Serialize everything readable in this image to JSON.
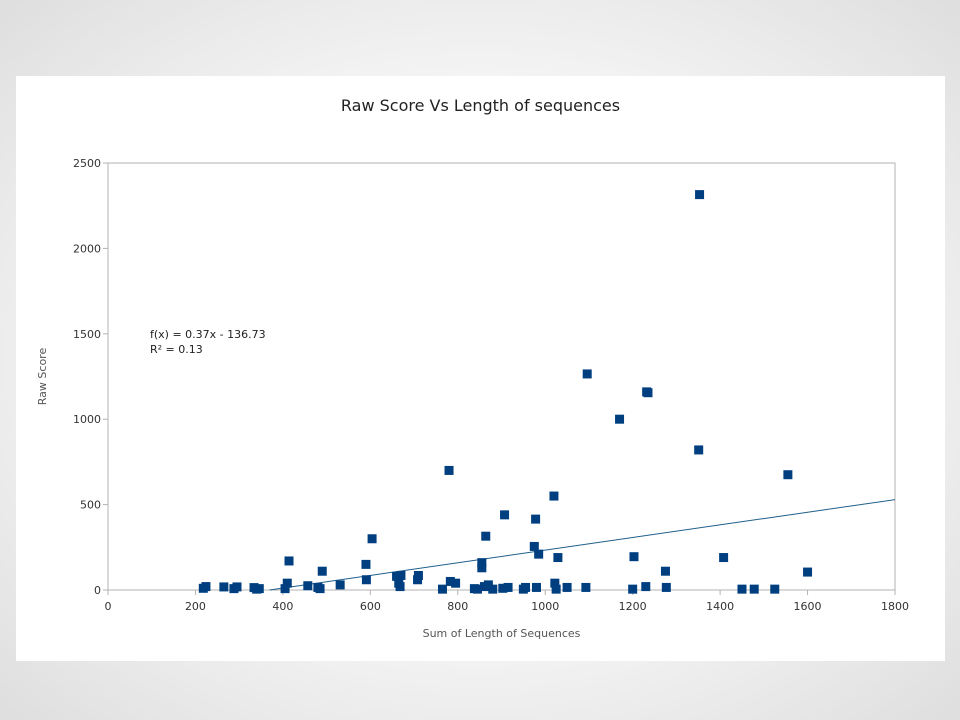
{
  "chart_data": {
    "type": "scatter",
    "title": "Raw Score Vs Length of sequences",
    "xlabel": "Sum of Length of Sequences",
    "ylabel": "Raw Score",
    "xlim": [
      0,
      1800
    ],
    "ylim": [
      0,
      2500
    ],
    "x_ticks": [
      "0",
      "200",
      "400",
      "600",
      "800",
      "1000",
      "1200",
      "1400",
      "1600",
      "1800"
    ],
    "y_ticks": [
      "0",
      "500",
      "1000",
      "1500",
      "2000",
      "2500"
    ],
    "grid": false,
    "marker_color": "#003f7f",
    "trendline": {
      "slope": 0.37,
      "intercept": -136.73,
      "equation": "f(x) = 0.37x - 136.73",
      "r_squared": "R² = 0.13",
      "color": "#1f5f8b"
    },
    "points": [
      [
        218,
        10
      ],
      [
        224,
        20
      ],
      [
        265,
        18
      ],
      [
        288,
        8
      ],
      [
        295,
        18
      ],
      [
        334,
        14
      ],
      [
        340,
        5
      ],
      [
        346,
        8
      ],
      [
        410,
        40
      ],
      [
        414,
        170
      ],
      [
        405,
        8
      ],
      [
        457,
        25
      ],
      [
        480,
        15
      ],
      [
        485,
        8
      ],
      [
        490,
        110
      ],
      [
        531,
        30
      ],
      [
        590,
        150
      ],
      [
        591,
        60
      ],
      [
        604,
        300
      ],
      [
        660,
        80
      ],
      [
        665,
        40
      ],
      [
        668,
        20
      ],
      [
        670,
        85
      ],
      [
        708,
        60
      ],
      [
        710,
        85
      ],
      [
        765,
        5
      ],
      [
        780,
        700
      ],
      [
        783,
        50
      ],
      [
        795,
        40
      ],
      [
        838,
        8
      ],
      [
        845,
        5
      ],
      [
        855,
        160
      ],
      [
        855,
        130
      ],
      [
        861,
        20
      ],
      [
        864,
        315
      ],
      [
        870,
        30
      ],
      [
        880,
        5
      ],
      [
        903,
        10
      ],
      [
        907,
        440
      ],
      [
        915,
        15
      ],
      [
        950,
        5
      ],
      [
        955,
        15
      ],
      [
        975,
        255
      ],
      [
        978,
        415
      ],
      [
        980,
        15
      ],
      [
        985,
        210
      ],
      [
        1020,
        550
      ],
      [
        1022,
        40
      ],
      [
        1025,
        5
      ],
      [
        1029,
        190
      ],
      [
        1050,
        15
      ],
      [
        1093,
        15
      ],
      [
        1096,
        1265
      ],
      [
        1170,
        1000
      ],
      [
        1200,
        5
      ],
      [
        1203,
        195
      ],
      [
        1230,
        20
      ],
      [
        1232,
        1160
      ],
      [
        1235,
        1155
      ],
      [
        1275,
        110
      ],
      [
        1277,
        15
      ],
      [
        1351,
        820
      ],
      [
        1353,
        2315
      ],
      [
        1408,
        190
      ],
      [
        1450,
        5
      ],
      [
        1478,
        5
      ],
      [
        1525,
        5
      ],
      [
        1555,
        675
      ],
      [
        1600,
        105
      ]
    ]
  }
}
